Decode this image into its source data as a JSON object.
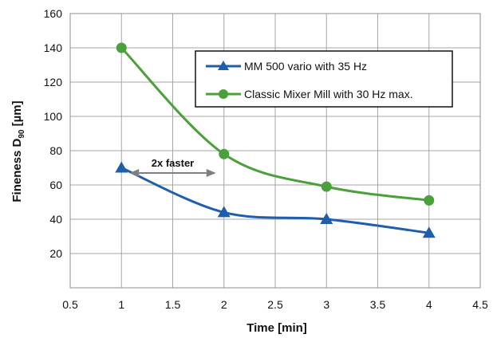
{
  "chart_data": {
    "type": "line",
    "xlabel": "Time [min]",
    "ylabel_main": "Fineness D",
    "ylabel_sub": "90",
    "ylabel_unit": " [µm]",
    "xlim": [
      0.5,
      4.5
    ],
    "ylim": [
      0,
      160
    ],
    "xticks": [
      0.5,
      1,
      1.5,
      2,
      2.5,
      3,
      3.5,
      4,
      4.5
    ],
    "xtick_labels": [
      "0.5",
      "1",
      "1.5",
      "2",
      "2.5",
      "3",
      "3.5",
      "4",
      "4.5"
    ],
    "yticks": [
      20,
      40,
      60,
      80,
      100,
      120,
      140,
      160
    ],
    "ytick_labels": [
      "20",
      "40",
      "60",
      "80",
      "100",
      "120",
      "140",
      "160"
    ],
    "grid": true,
    "legend_position": "top-right",
    "series": [
      {
        "name": "MM 500 vario with 35 Hz",
        "color": "#1f5faa",
        "marker": "triangle",
        "x": [
          1,
          2,
          3,
          4
        ],
        "y": [
          70,
          44,
          40,
          32
        ]
      },
      {
        "name": "Classic Mixer Mill with 30 Hz max.",
        "color": "#4aa03a",
        "marker": "circle",
        "x": [
          1,
          2,
          3,
          4
        ],
        "y": [
          140,
          78,
          59,
          51
        ]
      }
    ],
    "annotations": [
      {
        "text": "2x faster",
        "x_from": 1,
        "x_to": 2,
        "y": 67
      }
    ]
  }
}
